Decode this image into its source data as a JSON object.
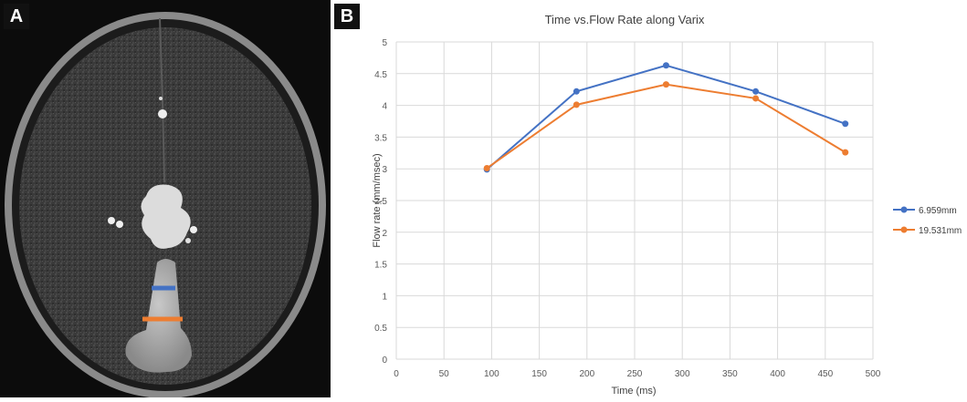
{
  "panel_a": {
    "label": "A"
  },
  "panel_b": {
    "label": "B"
  },
  "colors": {
    "blue": "#4472c4",
    "orange": "#ed7d31",
    "grid": "#d9d9d9",
    "axis_text": "#595959"
  },
  "chart_data": {
    "type": "line",
    "title": "Time vs.Flow Rate along Varix",
    "xlabel": "Time (ms)",
    "ylabel": "Flow rate  (mm/msec)",
    "xlim": [
      0,
      500
    ],
    "ylim": [
      0,
      5
    ],
    "xticks": [
      "0",
      "50",
      "100",
      "150",
      "200",
      "250",
      "300",
      "350",
      "400",
      "450",
      "500"
    ],
    "yticks": [
      "0",
      "0.5",
      "1",
      "1.5",
      "2",
      "2.5",
      "3",
      "3.5",
      "4",
      "4.5",
      "5"
    ],
    "grid": true,
    "legend_position": "right",
    "series": [
      {
        "name": "6.959mm",
        "color": "#4472c4",
        "x": [
          95,
          189,
          283,
          377,
          471
        ],
        "y": [
          2.99,
          4.22,
          4.63,
          4.22,
          3.71
        ]
      },
      {
        "name": "19.531mm",
        "color": "#ed7d31",
        "x": [
          95,
          189,
          283,
          377,
          471
        ],
        "y": [
          3.01,
          4.01,
          4.33,
          4.11,
          3.26
        ]
      }
    ]
  }
}
